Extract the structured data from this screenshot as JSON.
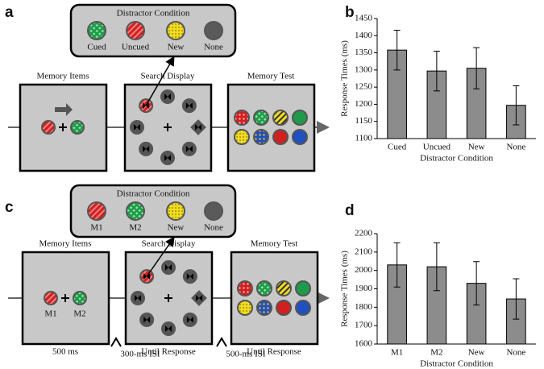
{
  "panel_labels": [
    "a",
    "b",
    "c",
    "d"
  ],
  "diagrams": [
    {
      "distractor_title": "Distractor Condition",
      "distractor_labels": [
        "Cued",
        "Uncued",
        "New",
        "None"
      ],
      "boxes": [
        "Memory Items",
        "Search Display",
        "Memory Test"
      ]
    },
    {
      "distractor_title": "Distractor Condition",
      "distractor_labels": [
        "M1",
        "M2",
        "New",
        "None"
      ],
      "boxes": [
        "Memory Items",
        "Search Display",
        "Memory Test"
      ],
      "item_labels": [
        "M1",
        "M2"
      ],
      "durations": [
        "500 ms",
        "Until Response",
        "Until Response"
      ],
      "isis": [
        "300-ms ISI",
        "500-ms ISI"
      ]
    }
  ],
  "chart_data": [
    {
      "type": "bar",
      "ylabel": "Response Times (ms)",
      "xlabel": "Distractor Condition",
      "categories": [
        "Cued",
        "Uncued",
        "New",
        "None"
      ],
      "values": [
        1358,
        1297,
        1305,
        1197
      ],
      "errors": [
        58,
        58,
        60,
        57
      ],
      "color": "#8c8c8c",
      "ylim": [
        1100,
        1450
      ],
      "yticks": [
        1100,
        1150,
        1200,
        1250,
        1300,
        1350,
        1400,
        1450
      ]
    },
    {
      "type": "bar",
      "ylabel": "Response Times (ms)",
      "xlabel": "Distractor Condition",
      "categories": [
        "M1",
        "M2",
        "New",
        "None"
      ],
      "values": [
        2030,
        2020,
        1930,
        1845
      ],
      "errors": [
        120,
        130,
        118,
        110
      ],
      "color": "#8c8c8c",
      "ylim": [
        1600,
        2200
      ],
      "yticks": [
        1600,
        1700,
        1800,
        1900,
        2000,
        2100,
        2200
      ]
    }
  ]
}
